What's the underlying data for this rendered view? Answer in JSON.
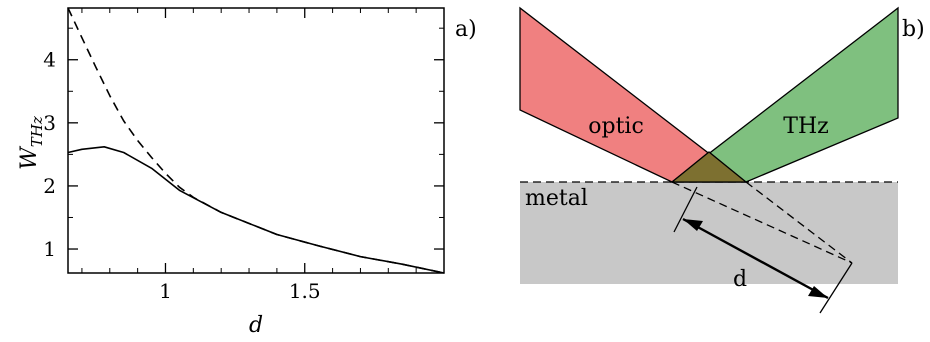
{
  "chart_data": {
    "type": "line",
    "xlabel": "d",
    "ylabel": "W",
    "ylabel_sub": "THz",
    "panel_label": "a)",
    "xlim": [
      0.65,
      2.0
    ],
    "ylim": [
      0.62,
      4.82
    ],
    "xticks": [
      {
        "value": 1,
        "label": "1"
      },
      {
        "value": 1.5,
        "label": "1.5"
      }
    ],
    "yticks": [
      {
        "value": 1,
        "label": "1"
      },
      {
        "value": 2,
        "label": "2"
      },
      {
        "value": 3,
        "label": "3"
      },
      {
        "value": 4,
        "label": "4"
      }
    ],
    "grid": false,
    "series": [
      {
        "style": "solid",
        "x": [
          0.65,
          0.7,
          0.78,
          0.85,
          0.95,
          1.05,
          1.2,
          1.4,
          1.55,
          1.7,
          1.85,
          2.0
        ],
        "y": [
          2.53,
          2.58,
          2.62,
          2.53,
          2.28,
          1.93,
          1.58,
          1.23,
          1.05,
          0.88,
          0.76,
          0.62
        ]
      },
      {
        "style": "dashed",
        "x": [
          0.65,
          0.7,
          0.75,
          0.8,
          0.85,
          0.9,
          0.95,
          1.0,
          1.05,
          1.1,
          1.2,
          1.4,
          1.55,
          1.7,
          1.85,
          2.0
        ],
        "y": [
          4.82,
          4.35,
          3.88,
          3.43,
          3.03,
          2.72,
          2.45,
          2.2,
          1.98,
          1.82,
          1.58,
          1.23,
          1.05,
          0.88,
          0.76,
          0.62
        ]
      }
    ]
  },
  "diagram": {
    "panel_label": "b)",
    "beam_optic_label": "optic",
    "beam_thz_label": "THz",
    "metal_label": "metal",
    "distance_label": "d",
    "colors": {
      "optic": "#f08080",
      "thz": "#7fc07f",
      "overlap": "#7d7030",
      "metal": "#c8c8c8"
    }
  }
}
